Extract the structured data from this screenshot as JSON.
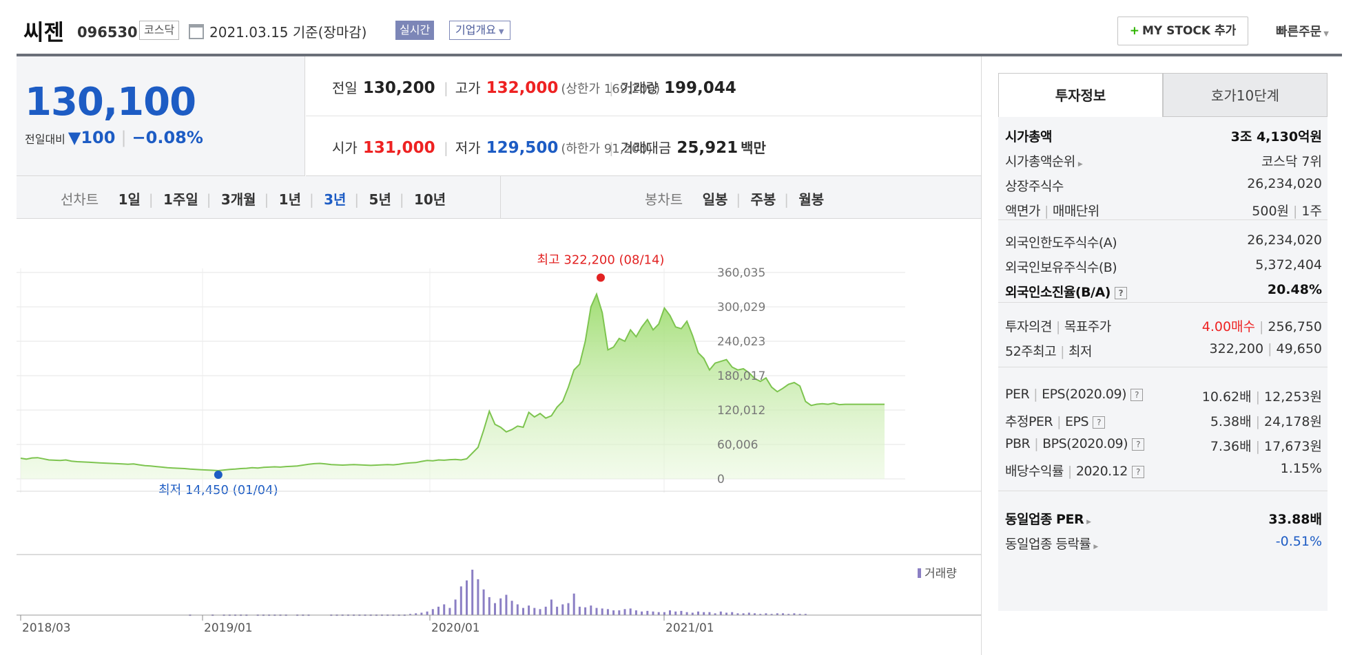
{
  "header": {
    "stock_name": "씨젠",
    "stock_code": "096530",
    "market": "코스닥",
    "date_basis": "2021.03.15  기준(장마감)",
    "realtime_label": "실시간",
    "overview_label": "기업개요",
    "mystock_label": "MY STOCK 추가",
    "quick_order_label": "빠른주문"
  },
  "price": {
    "current": "130,100",
    "compare_label": "전일대비",
    "change": "▼100",
    "change_pct": "−0.08%"
  },
  "quotes": {
    "prev_close": {
      "label": "전일",
      "value": "130,200"
    },
    "high": {
      "label": "고가",
      "value": "132,000",
      "note": "(상한가 169,200)"
    },
    "volume": {
      "label": "거래량",
      "value": "199,044"
    },
    "open": {
      "label": "시가",
      "value": "131,000"
    },
    "low": {
      "label": "저가",
      "value": "129,500",
      "note": "(하한가 91,200)"
    },
    "amount": {
      "label": "거래대금",
      "value": "25,921",
      "unit": "백만"
    }
  },
  "period_bar": {
    "line_chart_label": "선차트",
    "line_periods": [
      "1일",
      "1주일",
      "3개월",
      "1년",
      "3년",
      "5년",
      "10년"
    ],
    "selected_period": "3년",
    "candle_chart_label": "봉차트",
    "candle_periods": [
      "일봉",
      "주봉",
      "월봉"
    ]
  },
  "chart_data": {
    "type": "area",
    "x_ticks": [
      "2018/03",
      "2019/01",
      "2020/01",
      "2021/01"
    ],
    "y_ticks": [
      "360,035",
      "300,029",
      "240,023",
      "180,017",
      "120,012",
      "60,006",
      "0"
    ],
    "ylim": [
      0,
      360035
    ],
    "grid": true,
    "high_annotation": "최고 322,200 (08/14)",
    "low_annotation": "최저 14,450 (01/04)",
    "volume_legend": "거래량",
    "colors": {
      "area": "#9ddc6e",
      "line": "#7dc44f",
      "high": "#e22222",
      "low": "#1d5cc4",
      "volume": "#8b7fc4"
    },
    "price_x": [
      0,
      1,
      2,
      3,
      4,
      5,
      6,
      7,
      8,
      9,
      10,
      11,
      12,
      13,
      14,
      15,
      16,
      17,
      18,
      19,
      20,
      21,
      22,
      23,
      24,
      25,
      26,
      27,
      28,
      29,
      30,
      31,
      32,
      33,
      34,
      35,
      36,
      37,
      38,
      39,
      40,
      41,
      42,
      43,
      44,
      45,
      46,
      47,
      48,
      49,
      50,
      51,
      52,
      53,
      54,
      55,
      56,
      57,
      58,
      59,
      60,
      61,
      62,
      63,
      64,
      65,
      66,
      67,
      68,
      69,
      70,
      71,
      72,
      73,
      74,
      75,
      76,
      77,
      78,
      79,
      80,
      81,
      82,
      83,
      84,
      85,
      86,
      87,
      88,
      89,
      90,
      91,
      92,
      93,
      94,
      95,
      96,
      97,
      98,
      99,
      100,
      101,
      102,
      103,
      104,
      105,
      106,
      107,
      108,
      109,
      110,
      111,
      112,
      113,
      114,
      115,
      116,
      117,
      118,
      119,
      120,
      121,
      122,
      123,
      124,
      125,
      126,
      127,
      128,
      129,
      130,
      131,
      132,
      133,
      134,
      135,
      136,
      137,
      138,
      139,
      140,
      141,
      142,
      143,
      144,
      145,
      146,
      147,
      148,
      149,
      150,
      151,
      152,
      153
    ],
    "price_values": [
      36000,
      34500,
      36500,
      37000,
      35000,
      33000,
      32500,
      32000,
      33000,
      31000,
      30000,
      29500,
      29000,
      28500,
      28000,
      27500,
      27000,
      26500,
      26000,
      25500,
      26000,
      24500,
      23000,
      22500,
      21500,
      20500,
      19500,
      19000,
      18500,
      18000,
      17000,
      16500,
      16000,
      15500,
      15000,
      14450,
      15500,
      16500,
      17000,
      18000,
      18500,
      19500,
      19000,
      20000,
      20500,
      21000,
      20500,
      21500,
      22000,
      22500,
      24000,
      25500,
      26500,
      27000,
      26000,
      25000,
      24500,
      24000,
      24500,
      25000,
      24500,
      24000,
      23500,
      24000,
      24500,
      25000,
      24500,
      25500,
      27000,
      28000,
      28500,
      30500,
      32000,
      31500,
      33000,
      32500,
      33500,
      34000,
      33000,
      35000,
      45000,
      55000,
      85000,
      118000,
      95000,
      90000,
      82000,
      86000,
      92000,
      90000,
      116000,
      108000,
      114000,
      106000,
      110000,
      125000,
      135000,
      160000,
      190000,
      200000,
      240000,
      300000,
      322200,
      290000,
      225000,
      230000,
      245000,
      240000,
      260000,
      248000,
      265000,
      278000,
      260000,
      270000,
      298000,
      285000,
      265000,
      262000,
      275000,
      250000,
      220000,
      210000,
      190000,
      202000,
      205000,
      208000,
      195000,
      190000,
      192000,
      185000,
      175000,
      170000,
      176000,
      160000,
      152000,
      158000,
      165000,
      168000,
      162000,
      135000,
      128000,
      130200,
      131000,
      130100,
      132000,
      129500,
      130100,
      130100,
      130100,
      130100,
      130100,
      130100,
      130100,
      130100,
      130100,
      130100
    ],
    "volume_x": [
      30,
      34,
      36,
      37,
      38,
      39,
      40,
      42,
      43,
      44,
      45,
      46,
      47,
      49,
      50,
      51,
      55,
      56,
      57,
      58,
      59,
      60,
      61,
      62,
      63,
      64,
      65,
      66,
      67,
      68,
      69,
      70,
      71,
      72,
      73,
      74,
      75,
      76,
      77,
      78,
      79,
      80,
      81,
      82,
      83,
      84,
      85,
      86,
      87,
      88,
      89,
      90,
      91,
      92,
      93,
      94,
      95,
      96,
      97,
      98,
      99,
      100,
      101,
      102,
      103,
      104,
      105,
      106,
      107,
      108,
      109,
      110,
      111,
      112,
      113,
      114,
      115,
      116,
      117,
      118,
      119,
      120,
      121,
      122,
      123,
      124,
      125,
      126,
      127,
      128,
      129,
      130,
      131,
      132,
      133,
      134,
      135,
      136,
      137,
      138,
      139
    ],
    "volume_values": [
      1,
      1,
      1,
      1,
      1,
      1,
      1,
      1,
      1,
      1,
      1,
      1,
      1,
      1,
      1,
      1,
      1,
      1,
      1,
      1,
      1,
      1,
      1,
      1,
      1,
      1,
      1,
      1,
      1,
      1,
      2,
      3,
      4,
      6,
      10,
      14,
      18,
      12,
      26,
      48,
      58,
      76,
      60,
      43,
      30,
      20,
      28,
      34,
      24,
      18,
      12,
      16,
      12,
      10,
      14,
      26,
      14,
      18,
      20,
      36,
      14,
      13,
      16,
      12,
      11,
      10,
      8,
      8,
      10,
      11,
      8,
      6,
      7,
      6,
      5,
      5,
      8,
      6,
      7,
      5,
      4,
      6,
      5,
      5,
      3,
      6,
      4,
      5,
      3,
      3,
      4,
      3,
      2,
      3,
      2,
      3,
      3,
      2,
      3,
      2,
      2
    ]
  },
  "invest_info": {
    "tab_active": "투자정보",
    "tab_other": "호가10단계",
    "market_cap": {
      "label": "시가총액",
      "value": "3조 4,130억원"
    },
    "market_cap_rank": {
      "label": "시가총액순위",
      "value": "코스닥 7위"
    },
    "listed_shares": {
      "label": "상장주식수",
      "value": "26,234,020"
    },
    "par_trade_unit": {
      "label1": "액면가",
      "label2": "매매단위",
      "value1": "500원",
      "value2": "1주"
    },
    "foreign_limit": {
      "label": "외국인한도주식수(A)",
      "value": "26,234,020"
    },
    "foreign_hold": {
      "label": "외국인보유주식수(B)",
      "value": "5,372,404"
    },
    "foreign_ratio": {
      "label": "외국인소진율(B/A)",
      "value": "20.48%"
    },
    "opinion_target": {
      "label1": "투자의견",
      "label2": "목표주가",
      "value1": "4.00매수",
      "value2": "256,750"
    },
    "week52": {
      "label1": "52주최고",
      "label2": "최저",
      "value1": "322,200",
      "value2": "49,650"
    },
    "per_eps": {
      "label1": "PER",
      "label2": "EPS(2020.09)",
      "value1": "10.62배",
      "value2": "12,253원"
    },
    "est_per_eps": {
      "label1": "추정PER",
      "label2": "EPS",
      "value1": "5.38배",
      "value2": "24,178원"
    },
    "pbr_bps": {
      "label1": "PBR",
      "label2": "BPS(2020.09)",
      "value1": "7.36배",
      "value2": "17,673원"
    },
    "dividend": {
      "label1": "배당수익률",
      "label2": "2020.12",
      "value": "1.15%"
    },
    "industry_per": {
      "label": "동일업종 PER",
      "value": "33.88배"
    },
    "industry_change": {
      "label": "동일업종 등락률",
      "value": "-0.51%"
    }
  }
}
